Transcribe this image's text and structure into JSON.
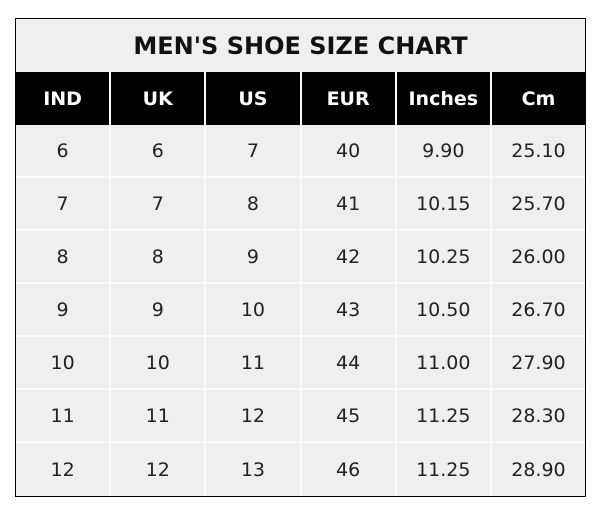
{
  "chart_data": {
    "type": "table",
    "title": "MEN'S SHOE SIZE CHART",
    "columns": [
      "IND",
      "UK",
      "US",
      "EUR",
      "Inches",
      "Cm"
    ],
    "rows": [
      [
        "6",
        "6",
        "7",
        "40",
        "9.90",
        "25.10"
      ],
      [
        "7",
        "7",
        "8",
        "41",
        "10.15",
        "25.70"
      ],
      [
        "8",
        "8",
        "9",
        "42",
        "10.25",
        "26.00"
      ],
      [
        "9",
        "9",
        "10",
        "43",
        "10.50",
        "26.70"
      ],
      [
        "10",
        "10",
        "11",
        "44",
        "11.00",
        "27.90"
      ],
      [
        "11",
        "11",
        "12",
        "45",
        "11.25",
        "28.30"
      ],
      [
        "12",
        "12",
        "13",
        "46",
        "11.25",
        "28.90"
      ]
    ],
    "colors": {
      "header_bg": "#000000",
      "header_text": "#ffffff",
      "body_bg": "#efefef"
    }
  }
}
